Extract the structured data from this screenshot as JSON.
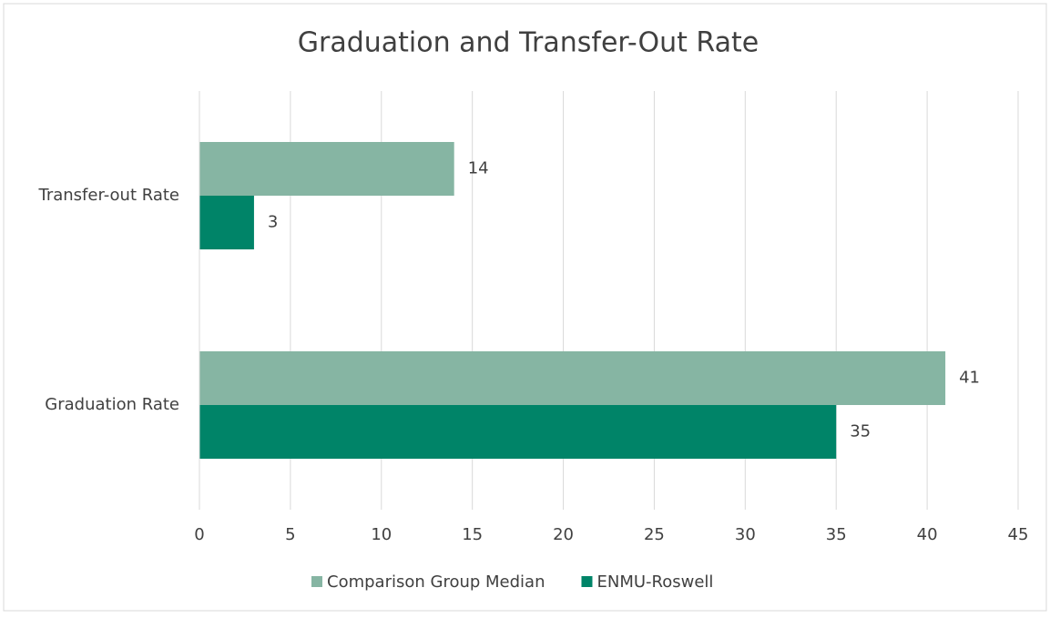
{
  "chart_data": {
    "type": "hbar",
    "title": "Graduation and Transfer-Out Rate",
    "categories": [
      "Transfer-out Rate",
      "Graduation Rate"
    ],
    "series": [
      {
        "name": "Comparison Group Median",
        "color": "#86b5a3",
        "values": [
          14,
          41
        ]
      },
      {
        "name": "ENMU-Roswell",
        "color": "#008468",
        "values": [
          3,
          35
        ]
      }
    ],
    "xlim": [
      0,
      45
    ],
    "xticks": [
      0,
      5,
      10,
      15,
      20,
      25,
      30,
      35,
      40,
      45
    ],
    "grid": true,
    "legend": "bottom",
    "data_labels": true
  }
}
